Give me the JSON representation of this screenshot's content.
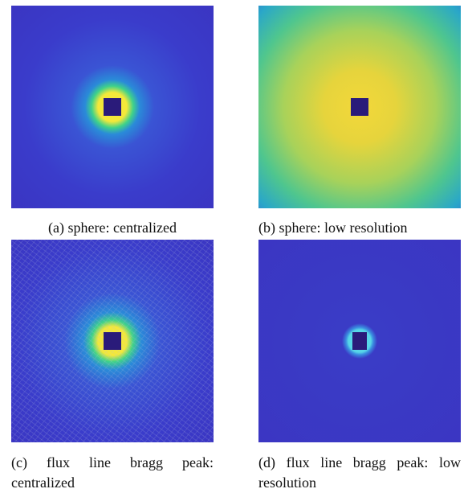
{
  "panels": [
    {
      "caption": "(a) sphere: centralized"
    },
    {
      "caption": "(b) sphere: low resolution"
    },
    {
      "caption": "(c) flux line bragg peak: centralized"
    },
    {
      "caption": "(d) flux line bragg peak: low resolution"
    }
  ]
}
